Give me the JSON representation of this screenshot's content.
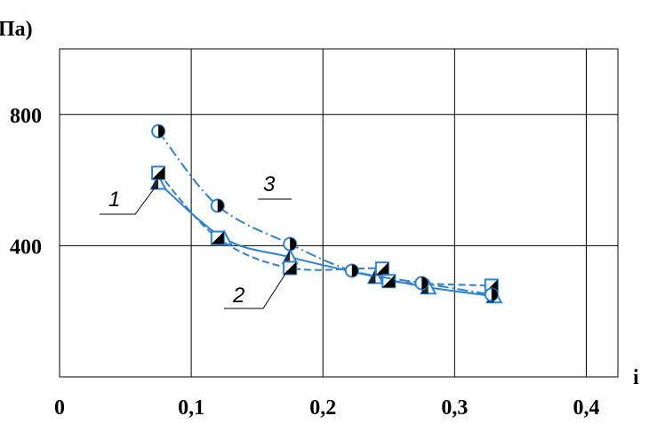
{
  "chart_data": {
    "type": "line",
    "y_label": "Па)",
    "x_label": "i",
    "xlim": [
      0,
      0.424
    ],
    "ylim": [
      0,
      1000
    ],
    "xticks": [
      0,
      {
        "value": 0.1,
        "label": "0,1"
      },
      {
        "value": 0.2,
        "label": "0,2"
      },
      {
        "value": 0.3,
        "label": "0,3"
      },
      {
        "value": 0.4,
        "label": "0,4"
      }
    ],
    "yticks": [
      400,
      800
    ],
    "grid": true,
    "series": [
      {
        "name": "1",
        "color": "#2b82d6",
        "marker": "triangle",
        "line": "solid",
        "x": [
          0.075,
          0.125,
          0.175,
          0.24,
          0.28,
          0.33
        ],
        "values": [
          592,
          422,
          365,
          305,
          273,
          246
        ]
      },
      {
        "name": "2",
        "color": "#2b82d6",
        "marker": "square",
        "line": "dashed",
        "x": [
          0.075,
          0.12,
          0.175,
          0.245,
          0.25,
          0.328
        ],
        "values": [
          622,
          424,
          332,
          330,
          292,
          278
        ]
      },
      {
        "name": "3",
        "color": "#2b82d6",
        "marker": "circle",
        "line": "dashdot",
        "x": [
          0.075,
          0.12,
          0.175,
          0.222,
          0.275,
          0.328
        ],
        "values": [
          749,
          522,
          405,
          324,
          286,
          251
        ]
      }
    ]
  }
}
